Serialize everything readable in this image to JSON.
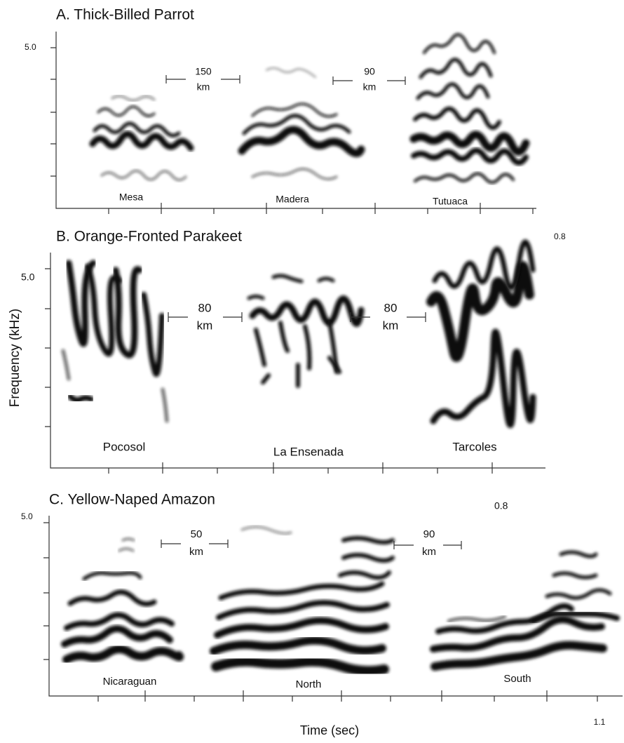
{
  "y_axis_label": "Frequency (kHz)",
  "x_axis_label": "Time (sec)",
  "x_end_label": "1.1",
  "panels": [
    {
      "title": "A. Thick-Billed Parrot",
      "y_top_label": "5.0",
      "sites": [
        "Mesa",
        "Madera",
        "Tutuaca"
      ],
      "distances": [
        {
          "value": "150",
          "unit": "km"
        },
        {
          "value": "90",
          "unit": "km"
        }
      ]
    },
    {
      "title": "B. Orange-Fronted Parakeet",
      "y_top_label": "5.0",
      "note": "0.8",
      "sites": [
        "Pocosol",
        "La Ensenada",
        "Tarcoles"
      ],
      "distances": [
        {
          "value": "80",
          "unit": "km"
        },
        {
          "value": "80",
          "unit": "km"
        }
      ]
    },
    {
      "title": "C. Yellow-Naped Amazon",
      "y_top_label": "5.0",
      "note": "0.8",
      "sites": [
        "Nicaraguan",
        "North",
        "South"
      ],
      "distances": [
        {
          "value": "50",
          "unit": "km"
        },
        {
          "value": "90",
          "unit": "km"
        }
      ]
    }
  ]
}
